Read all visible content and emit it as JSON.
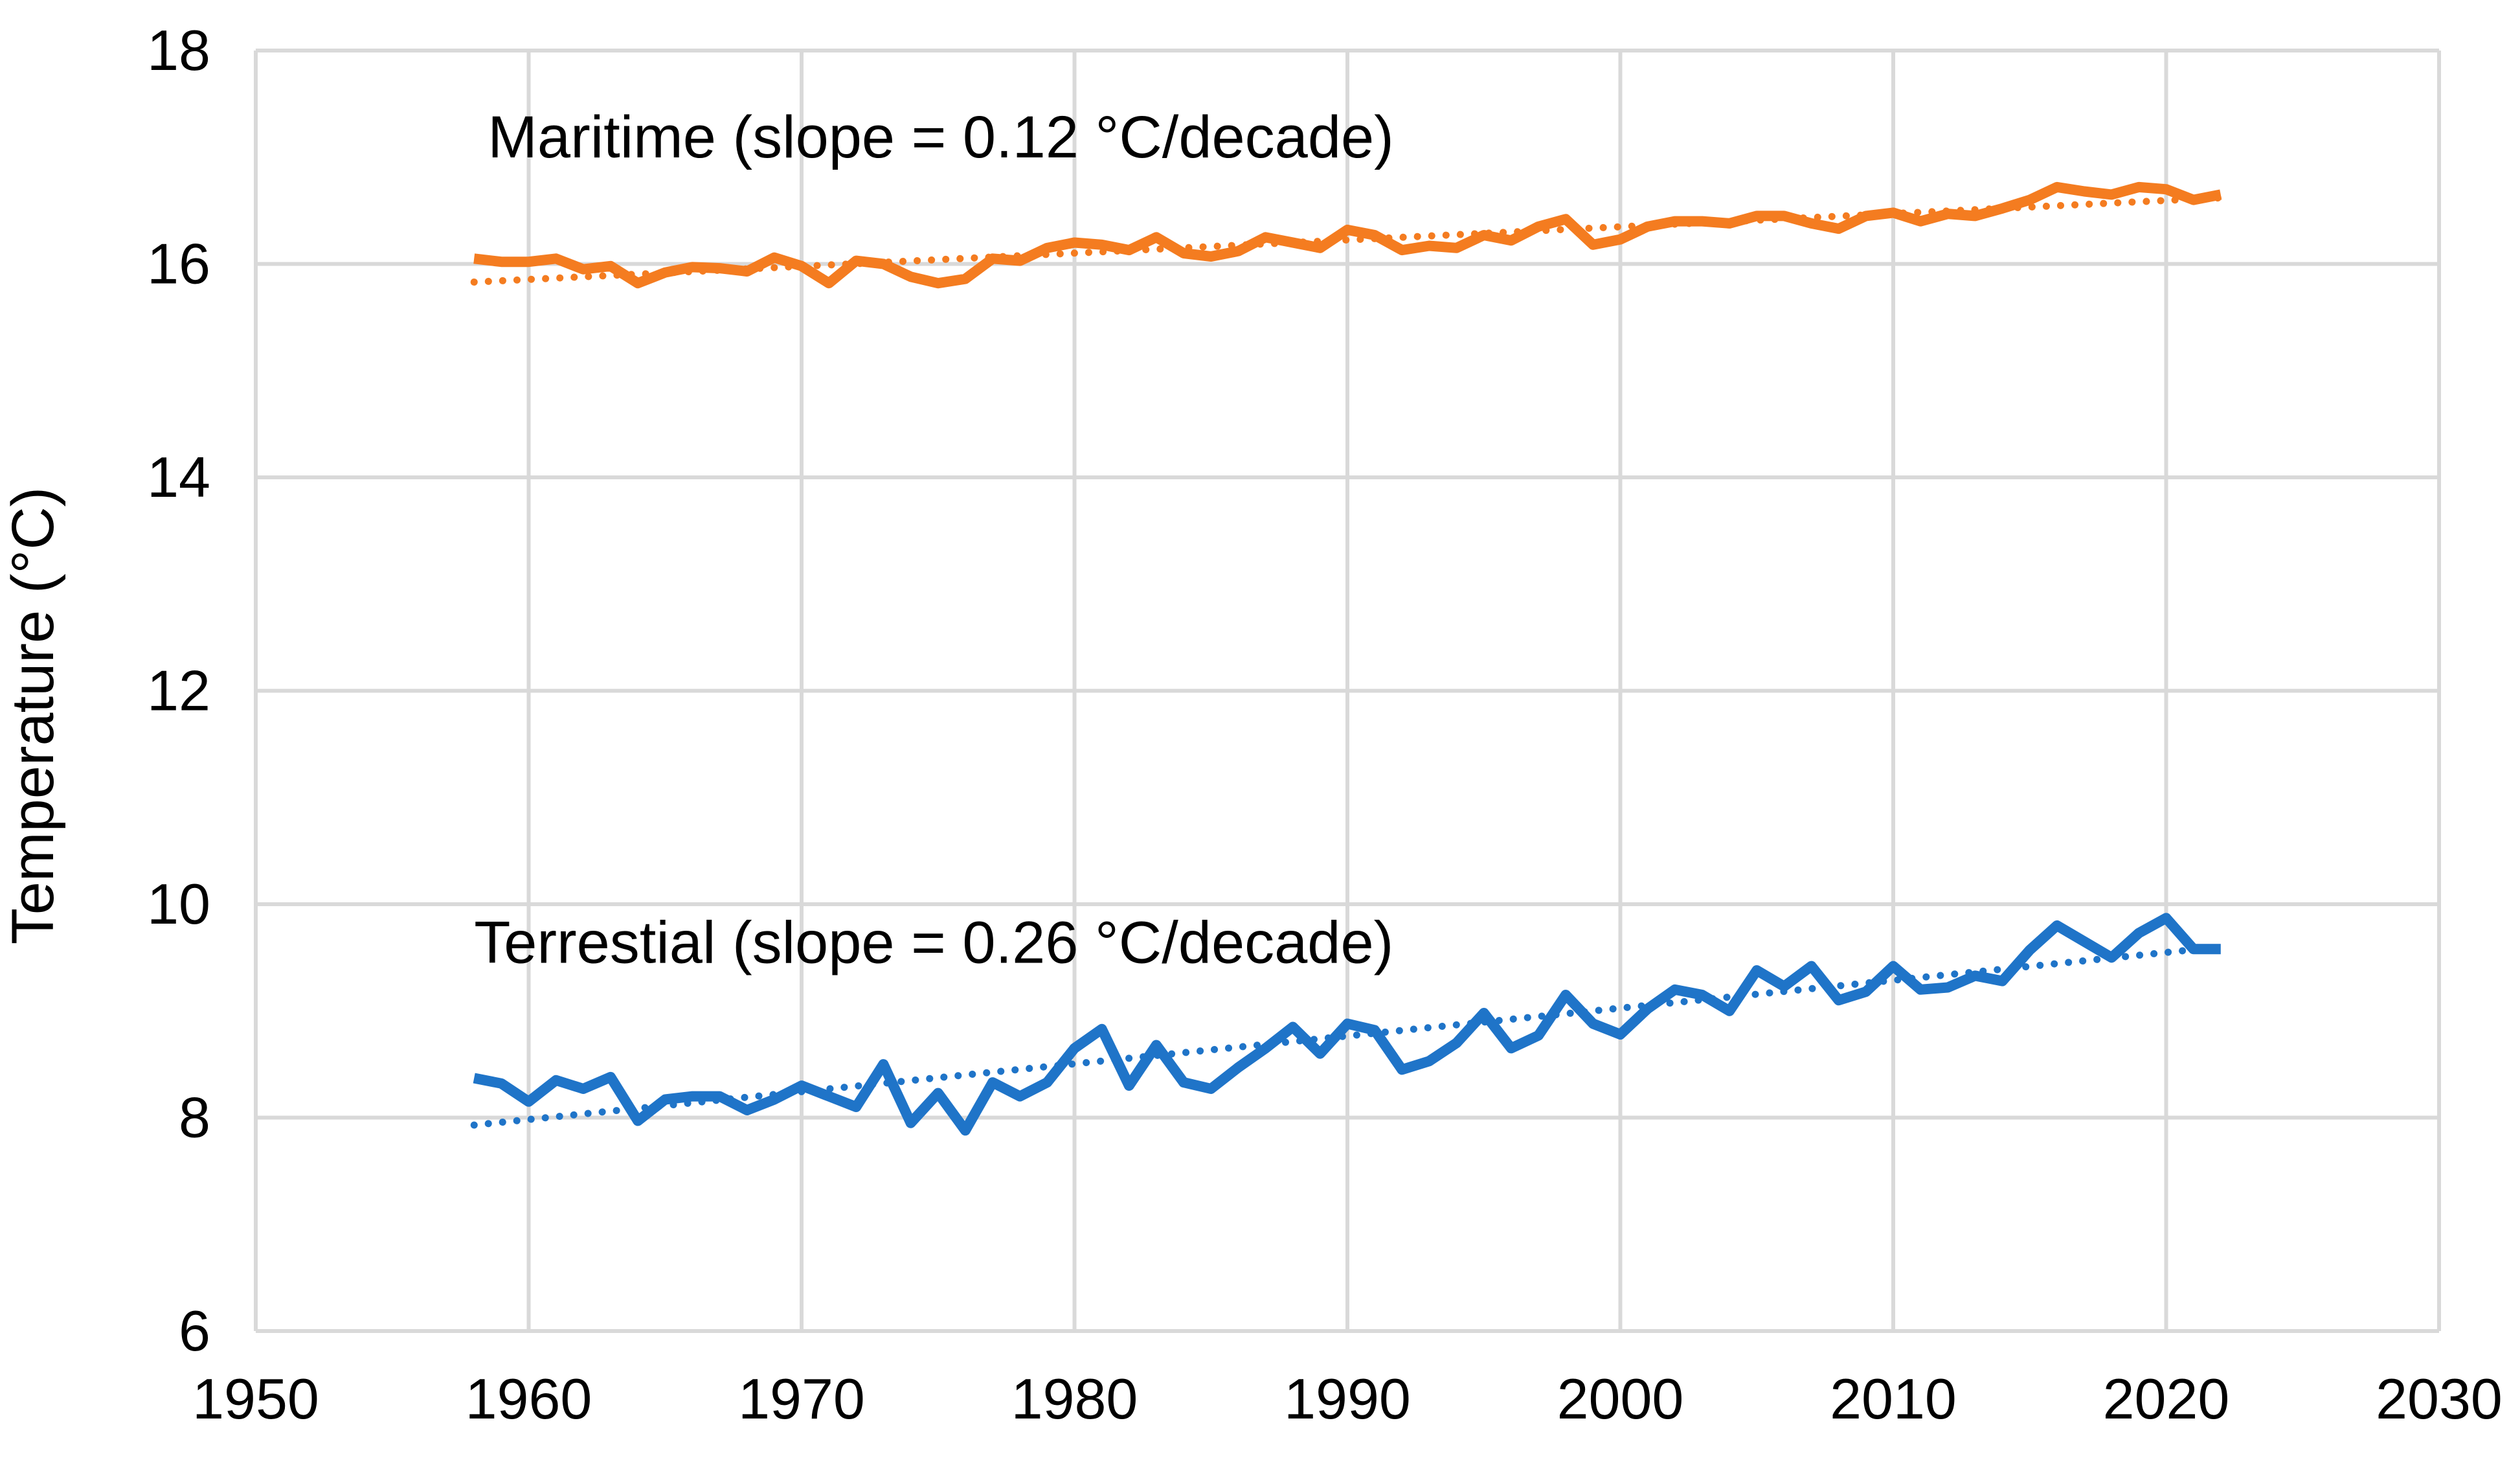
{
  "chart_data": {
    "type": "line",
    "title": "",
    "xlabel": "",
    "ylabel": "Temperature (°C)",
    "xlim": [
      1950,
      2030
    ],
    "ylim": [
      6,
      18
    ],
    "grid": true,
    "x_ticks": [
      "1950",
      "1960",
      "1970",
      "1980",
      "1990",
      "2000",
      "2010",
      "2020",
      "2030"
    ],
    "y_ticks": [
      "6",
      "8",
      "10",
      "12",
      "14",
      "16",
      "18"
    ],
    "annotations": [
      {
        "name": "annotation-maritime",
        "text": "Maritime (slope = 0.12 °C/decade)",
        "x": 1958.5,
        "y": 17.0
      },
      {
        "name": "annotation-terrestrial",
        "text": "Terrestial (slope = 0.26 °C/decade)",
        "x": 1958,
        "y": 9.45
      }
    ],
    "series": [
      {
        "name": "Maritime",
        "color": "#f47c20",
        "style": "solid",
        "x": [
          1958,
          1959,
          1960,
          1961,
          1962,
          1963,
          1964,
          1965,
          1966,
          1967,
          1968,
          1969,
          1970,
          1971,
          1972,
          1973,
          1974,
          1975,
          1976,
          1977,
          1978,
          1979,
          1980,
          1981,
          1982,
          1983,
          1984,
          1985,
          1986,
          1987,
          1988,
          1989,
          1990,
          1991,
          1992,
          1993,
          1994,
          1995,
          1996,
          1997,
          1998,
          1999,
          2000,
          2001,
          2002,
          2003,
          2004,
          2005,
          2006,
          2007,
          2008,
          2009,
          2010,
          2011,
          2012,
          2013,
          2014,
          2015,
          2016,
          2017,
          2018,
          2019,
          2020,
          2021,
          2022
        ],
        "values": [
          16.05,
          16.02,
          16.02,
          16.05,
          15.95,
          15.98,
          15.82,
          15.92,
          15.97,
          15.96,
          15.93,
          16.06,
          15.98,
          15.82,
          16.03,
          16.0,
          15.88,
          15.82,
          15.86,
          16.05,
          16.03,
          16.15,
          16.2,
          16.18,
          16.13,
          16.25,
          16.1,
          16.07,
          16.12,
          16.25,
          16.2,
          16.15,
          16.32,
          16.27,
          16.13,
          16.17,
          16.15,
          16.27,
          16.22,
          16.35,
          16.42,
          16.18,
          16.23,
          16.35,
          16.4,
          16.4,
          16.38,
          16.45,
          16.45,
          16.38,
          16.33,
          16.45,
          16.48,
          16.4,
          16.47,
          16.45,
          16.52,
          16.6,
          16.72,
          16.68,
          16.65,
          16.72,
          16.7,
          16.6,
          16.65
        ]
      },
      {
        "name": "Maritime trend",
        "color": "#f47c20",
        "style": "dotted",
        "x": [
          1958,
          2022
        ],
        "values": [
          15.83,
          16.62
        ]
      },
      {
        "name": "Terrestial",
        "color": "#1f74c8",
        "style": "solid",
        "x": [
          1958,
          1959,
          1960,
          1961,
          1962,
          1963,
          1964,
          1965,
          1966,
          1967,
          1968,
          1969,
          1970,
          1971,
          1972,
          1973,
          1974,
          1975,
          1976,
          1977,
          1978,
          1979,
          1980,
          1981,
          1982,
          1983,
          1984,
          1985,
          1986,
          1987,
          1988,
          1989,
          1990,
          1991,
          1992,
          1993,
          1994,
          1995,
          1996,
          1997,
          1998,
          1999,
          2000,
          2001,
          2002,
          2003,
          2004,
          2005,
          2006,
          2007,
          2008,
          2009,
          2010,
          2011,
          2012,
          2013,
          2014,
          2015,
          2016,
          2017,
          2018,
          2019,
          2020,
          2021,
          2022
        ],
        "values": [
          8.37,
          8.32,
          8.15,
          8.35,
          8.27,
          8.38,
          7.97,
          8.17,
          8.2,
          8.2,
          8.07,
          8.17,
          8.3,
          8.2,
          8.1,
          8.5,
          7.95,
          8.23,
          7.88,
          8.33,
          8.2,
          8.33,
          8.65,
          8.83,
          8.3,
          8.68,
          8.33,
          8.27,
          8.47,
          8.65,
          8.85,
          8.6,
          8.88,
          8.82,
          8.45,
          8.53,
          8.7,
          8.98,
          8.65,
          8.77,
          9.15,
          8.88,
          8.78,
          9.02,
          9.2,
          9.15,
          9.0,
          9.38,
          9.23,
          9.42,
          9.1,
          9.18,
          9.42,
          9.2,
          9.22,
          9.33,
          9.28,
          9.57,
          9.8,
          9.65,
          9.5,
          9.73,
          9.87,
          9.58,
          9.58
        ]
      },
      {
        "name": "Terrestial trend",
        "color": "#1f74c8",
        "style": "dotted",
        "x": [
          1958,
          2022
        ],
        "values": [
          7.93,
          9.6
        ]
      }
    ]
  }
}
